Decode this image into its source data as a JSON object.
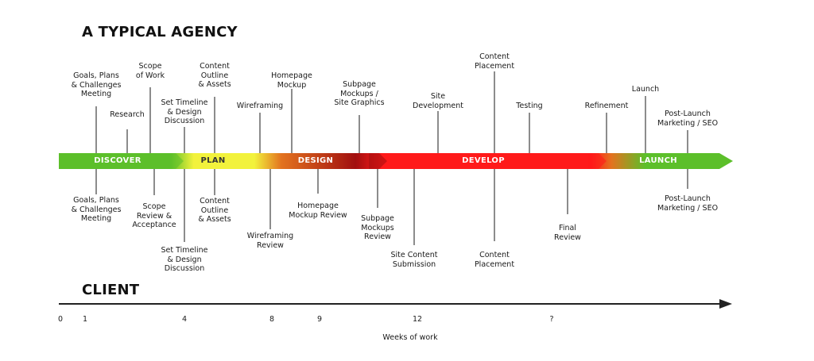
{
  "headings": {
    "agency": "A TYPICAL AGENCY",
    "client": "CLIENT"
  },
  "phases": [
    {
      "key": "discover",
      "label": "DISCOVER"
    },
    {
      "key": "plan",
      "label": "PLAN"
    },
    {
      "key": "design",
      "label": "DESIGN"
    },
    {
      "key": "develop",
      "label": "DEVELOP"
    },
    {
      "key": "launch",
      "label": "LAUNCH"
    }
  ],
  "colors": {
    "discover": "#5cbf2a",
    "plan": "#f2f23c",
    "design": "#e3731f",
    "design_dark": "#a10f0f",
    "develop": "#ff1a1a",
    "launch": "#5cbf2a",
    "text_on_bar": "#ffffff",
    "axis": "#222222"
  },
  "agency_top": [
    {
      "key": "goals-meeting",
      "lines": [
        "Goals, Plans",
        "& Challenges",
        "Meeting"
      ]
    },
    {
      "key": "research",
      "lines": [
        "Research"
      ]
    },
    {
      "key": "scope-of-work",
      "lines": [
        "Scope",
        "of Work"
      ]
    },
    {
      "key": "set-timeline",
      "lines": [
        "Set Timeline",
        "& Design",
        "Discussion"
      ]
    },
    {
      "key": "content-outline",
      "lines": [
        "Content",
        "Outline",
        "& Assets"
      ]
    },
    {
      "key": "wireframing",
      "lines": [
        "Wireframing"
      ]
    },
    {
      "key": "homepage-mockup",
      "lines": [
        "Homepage",
        "Mockup"
      ]
    },
    {
      "key": "subpage-mockups",
      "lines": [
        "Subpage",
        "Mockups /",
        "Site Graphics"
      ]
    },
    {
      "key": "site-development",
      "lines": [
        "Site",
        "Development"
      ]
    },
    {
      "key": "content-placement",
      "lines": [
        "Content",
        "Placement"
      ]
    },
    {
      "key": "testing",
      "lines": [
        "Testing"
      ]
    },
    {
      "key": "refinement",
      "lines": [
        "Refinement"
      ]
    },
    {
      "key": "launch",
      "lines": [
        "Launch"
      ]
    },
    {
      "key": "post-launch",
      "lines": [
        "Post-Launch",
        "Marketing / SEO"
      ]
    }
  ],
  "client_bottom": [
    {
      "key": "goals-meeting",
      "lines": [
        "Goals, Plans",
        "& Challenges",
        "Meeting"
      ]
    },
    {
      "key": "scope-review",
      "lines": [
        "Scope",
        "Review &",
        "Acceptance"
      ]
    },
    {
      "key": "set-timeline",
      "lines": [
        "Set Timeline",
        "& Design",
        "Discussion"
      ]
    },
    {
      "key": "content-outline",
      "lines": [
        "Content",
        "Outline",
        "& Assets"
      ]
    },
    {
      "key": "wireframing-review",
      "lines": [
        "Wireframing",
        "Review"
      ]
    },
    {
      "key": "homepage-review",
      "lines": [
        "Homepage",
        "Mockup Review"
      ]
    },
    {
      "key": "subpage-review",
      "lines": [
        "Subpage",
        "Mockups",
        "Review"
      ]
    },
    {
      "key": "site-content-submission",
      "lines": [
        "Site Content",
        "Submission"
      ]
    },
    {
      "key": "content-placement",
      "lines": [
        "Content",
        "Placement"
      ]
    },
    {
      "key": "final-review",
      "lines": [
        "Final",
        "Review"
      ]
    },
    {
      "key": "post-launch",
      "lines": [
        "Post-Launch",
        "Marketing / SEO"
      ]
    }
  ],
  "timeline": {
    "ticks": [
      "0",
      "1",
      "4",
      "8",
      "9",
      "12",
      "?"
    ],
    "axis_title": "Weeks of work"
  }
}
